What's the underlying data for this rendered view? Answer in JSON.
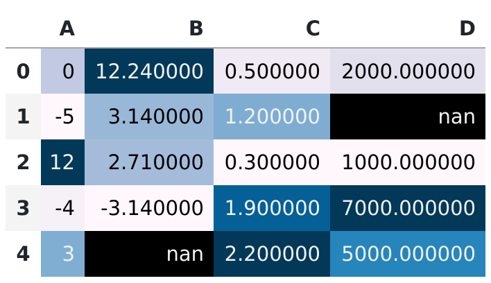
{
  "chart_data": {
    "type": "table",
    "title": "",
    "description": "pandas DataFrame rendered with Styler background_gradient (PuBu colormap, per-column); NaN cells rendered black",
    "columns": [
      "A",
      "B",
      "C",
      "D"
    ],
    "index_labels": [
      "0",
      "1",
      "2",
      "3",
      "4"
    ],
    "values": [
      [
        0,
        12.24,
        0.5,
        2000.0
      ],
      [
        -5,
        3.14,
        1.2,
        null
      ],
      [
        12,
        2.71,
        0.3,
        1000.0
      ],
      [
        -4,
        -3.14,
        1.9,
        7000.0
      ],
      [
        3,
        null,
        2.2,
        5000.0
      ]
    ],
    "rows": [
      {
        "index": "0",
        "striped": false,
        "cells": [
          {
            "text": "0",
            "bg": "#c1cae2",
            "fg": "#000000"
          },
          {
            "text": "12.240000",
            "bg": "#023858",
            "fg": "#f1f1f1"
          },
          {
            "text": "0.500000",
            "bg": "#efeaf3",
            "fg": "#000000"
          },
          {
            "text": "2000.000000",
            "bg": "#e3e0ee",
            "fg": "#000000"
          }
        ]
      },
      {
        "index": "1",
        "striped": true,
        "cells": [
          {
            "text": "-5",
            "bg": "#fff7fb",
            "fg": "#000000"
          },
          {
            "text": "3.140000",
            "bg": "#99b8d8",
            "fg": "#000000"
          },
          {
            "text": "1.200000",
            "bg": "#7fadd2",
            "fg": "#f1f1f1"
          },
          {
            "text": "nan",
            "bg": "#000000",
            "fg": "#f1f1f1"
          }
        ]
      },
      {
        "index": "2",
        "striped": false,
        "cells": [
          {
            "text": "12",
            "bg": "#023858",
            "fg": "#f1f1f1"
          },
          {
            "text": "2.710000",
            "bg": "#a4bcda",
            "fg": "#000000"
          },
          {
            "text": "0.300000",
            "bg": "#fff7fb",
            "fg": "#000000"
          },
          {
            "text": "1000.000000",
            "bg": "#fff7fb",
            "fg": "#000000"
          }
        ]
      },
      {
        "index": "3",
        "striped": true,
        "cells": [
          {
            "text": "-4",
            "bg": "#f6f0f7",
            "fg": "#000000"
          },
          {
            "text": "-3.140000",
            "bg": "#fff7fb",
            "fg": "#000000"
          },
          {
            "text": "1.900000",
            "bg": "#046096",
            "fg": "#f1f1f1"
          },
          {
            "text": "7000.000000",
            "bg": "#023858",
            "fg": "#f1f1f1"
          }
        ]
      },
      {
        "index": "4",
        "striped": false,
        "cells": [
          {
            "text": "3",
            "bg": "#80aed2",
            "fg": "#f1f1f1"
          },
          {
            "text": "nan",
            "bg": "#000000",
            "fg": "#f1f1f1"
          },
          {
            "text": "2.200000",
            "bg": "#023858",
            "fg": "#f1f1f1"
          },
          {
            "text": "5000.000000",
            "bg": "#2685bb",
            "fg": "#f1f1f1"
          }
        ]
      }
    ],
    "layout_hints": {
      "header_text_color": "#212529",
      "header_border_color": "#a6a6a6",
      "stripe_color": "#f4f4f4",
      "background": "#ffffff",
      "colormap": "PuBu",
      "colormap_min": "#fff7fb",
      "colormap_max": "#023858",
      "nan_cell_color": "#000000",
      "light_text_color": "#f1f1f1",
      "dark_text_color": "#000000"
    }
  }
}
